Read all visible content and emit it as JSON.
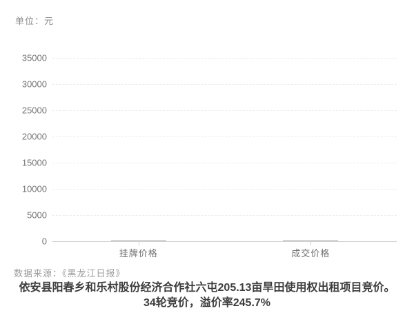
{
  "header": {
    "unit_label": "单位：元"
  },
  "footer": {
    "source_label": "数据来源：《黑龙江日报》",
    "caption_line1": "依安县阳春乡和乐村股份经济合作社六屯205.13亩旱田使用权出租项目竞价。",
    "caption_line2": "34轮竞价，溢价率245.7%"
  },
  "colors": {
    "background": "#ffffff",
    "grid": "#ebebeb",
    "axis": "#cccccc",
    "bar": "#d5d5d5",
    "axis_text": "#757575",
    "muted_text": "#9b9b9b",
    "caption_text": "#3d3d3d"
  },
  "chart_data": {
    "type": "bar",
    "categories": [
      "挂牌价格",
      "成交价格"
    ],
    "values": [
      0,
      0
    ],
    "title": "依安县阳春乡和乐村股份经济合作社六屯205.13亩旱田使用权出租项目竞价。34轮竞价，溢价率245.7%",
    "xlabel": "",
    "ylabel": "元",
    "ylim": [
      0,
      35000
    ],
    "yticks": [
      0,
      5000,
      10000,
      15000,
      20000,
      25000,
      30000,
      35000
    ],
    "grid": "horizontal-dashed",
    "legend": "none",
    "note": "bars are drawn at the baseline with ~0 rendered height"
  }
}
